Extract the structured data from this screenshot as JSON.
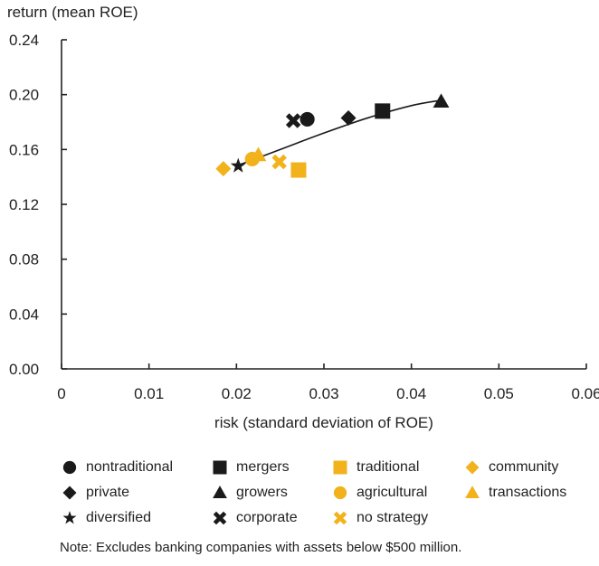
{
  "chart_data": {
    "type": "scatter",
    "xlabel": "risk (standard deviation of ROE)",
    "ylabel": "return (mean ROE)",
    "xlim": [
      0,
      0.06
    ],
    "ylim": [
      0,
      0.24
    ],
    "xticks": [
      "0",
      "0.01",
      "0.02",
      "0.03",
      "0.04",
      "0.05",
      "0.06"
    ],
    "yticks": [
      "0.00",
      "0.04",
      "0.08",
      "0.12",
      "0.16",
      "0.20",
      "0.24"
    ],
    "grid": false,
    "legend_position": "bottom",
    "colors": {
      "dark": "#1a1a1a",
      "gold": "#f2b21c",
      "axis": "#222222"
    },
    "series": [
      {
        "name": "nontraditional",
        "marker": "circle",
        "color": "dark",
        "x": 0.0281,
        "y": 0.182
      },
      {
        "name": "mergers",
        "marker": "square",
        "color": "dark",
        "x": 0.0367,
        "y": 0.188
      },
      {
        "name": "traditional",
        "marker": "square",
        "color": "gold",
        "x": 0.0271,
        "y": 0.145
      },
      {
        "name": "community",
        "marker": "diamond",
        "color": "gold",
        "x": 0.0185,
        "y": 0.146
      },
      {
        "name": "private",
        "marker": "diamond",
        "color": "dark",
        "x": 0.0328,
        "y": 0.183
      },
      {
        "name": "growers",
        "marker": "triangle",
        "color": "dark",
        "x": 0.0434,
        "y": 0.195
      },
      {
        "name": "agricultural",
        "marker": "circle",
        "color": "gold",
        "x": 0.0218,
        "y": 0.153
      },
      {
        "name": "transactions",
        "marker": "triangle",
        "color": "gold",
        "x": 0.0225,
        "y": 0.156
      },
      {
        "name": "diversified",
        "marker": "star",
        "color": "dark",
        "x": 0.0202,
        "y": 0.148
      },
      {
        "name": "corporate",
        "marker": "cross",
        "color": "dark",
        "x": 0.0265,
        "y": 0.181
      },
      {
        "name": "no strategy",
        "marker": "cross",
        "color": "gold",
        "x": 0.0249,
        "y": 0.151
      }
    ],
    "trend_line": {
      "x": [
        0.02,
        0.025,
        0.03,
        0.035,
        0.04,
        0.0435
      ],
      "y": [
        0.148,
        0.16,
        0.172,
        0.183,
        0.192,
        0.196
      ]
    }
  },
  "legend": [
    {
      "label": "nontraditional",
      "marker": "circle",
      "color": "dark"
    },
    {
      "label": "mergers",
      "marker": "square",
      "color": "dark"
    },
    {
      "label": "traditional",
      "marker": "square",
      "color": "gold"
    },
    {
      "label": "community",
      "marker": "diamond",
      "color": "gold"
    },
    {
      "label": "private",
      "marker": "diamond",
      "color": "dark"
    },
    {
      "label": "growers",
      "marker": "triangle",
      "color": "dark"
    },
    {
      "label": "agricultural",
      "marker": "circle",
      "color": "gold"
    },
    {
      "label": "transactions",
      "marker": "triangle",
      "color": "gold"
    },
    {
      "label": "diversified",
      "marker": "star",
      "color": "dark"
    },
    {
      "label": "corporate",
      "marker": "cross",
      "color": "dark"
    },
    {
      "label": "no strategy",
      "marker": "cross",
      "color": "gold"
    }
  ],
  "note": "Note: Excludes banking companies with assets below $500 million."
}
